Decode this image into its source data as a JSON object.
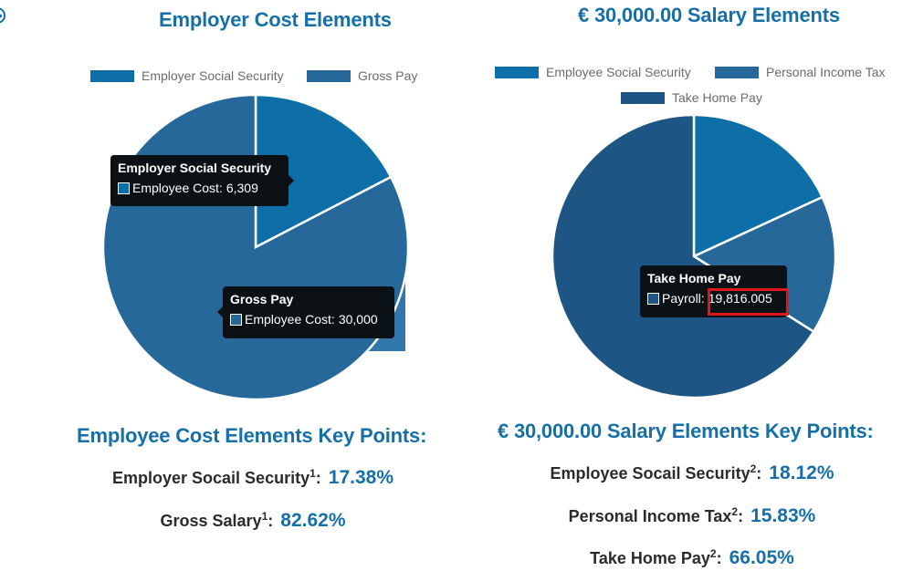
{
  "colors": {
    "accent": "#1670a8",
    "slice_light": "#0e6fa8",
    "slice_mid": "#26689a",
    "slice_dark": "#1d5584",
    "tooltip_bg": "#0c1116",
    "highlight": "#e0161b"
  },
  "left": {
    "title": "Employer Cost Elements",
    "legend": [
      "Employer Social Security",
      "Gross Pay"
    ],
    "tooltips": [
      {
        "title": "Employer Social Security",
        "label": "Employee Cost:",
        "value": "6,309"
      },
      {
        "title": "Gross Pay",
        "label": "Employee Cost:",
        "value": "30,000"
      }
    ],
    "key_points": {
      "title": "Employee Cost Elements Key Points:",
      "rows": [
        {
          "label": "Employer Socail Security",
          "sup": "1",
          "value": "17.38%"
        },
        {
          "label": "Gross Salary",
          "sup": "1",
          "value": "82.62%"
        }
      ]
    }
  },
  "right": {
    "title": "€ 30,000.00 Salary Elements",
    "legend": [
      "Employee Social Security",
      "Personal Income Tax",
      "Take Home Pay"
    ],
    "tooltip": {
      "title": "Take Home Pay",
      "label": "Payroll:",
      "value": "19,816.005"
    },
    "key_points": {
      "title": "€ 30,000.00 Salary Elements Key Points:",
      "rows": [
        {
          "label": "Employee Socail Security",
          "sup": "2",
          "value": "18.12%"
        },
        {
          "label": "Personal Income Tax",
          "sup": "2",
          "value": "15.83%"
        },
        {
          "label": "Take Home Pay",
          "sup": "2",
          "value": "66.05%"
        }
      ]
    }
  },
  "chart_data": [
    {
      "type": "pie",
      "title": "Employer Cost Elements",
      "categories": [
        "Employer Social Security",
        "Gross Pay"
      ],
      "values": [
        6309,
        30000
      ],
      "percentages": [
        17.38,
        82.62
      ],
      "colors": [
        "#0e6fa8",
        "#26689a"
      ],
      "legend_position": "top"
    },
    {
      "type": "pie",
      "title": "€ 30,000.00 Salary Elements",
      "categories": [
        "Employee Social Security",
        "Personal Income Tax",
        "Take Home Pay"
      ],
      "values": [
        5436,
        4748,
        19816.005
      ],
      "percentages": [
        18.12,
        15.83,
        66.05
      ],
      "colors": [
        "#0e6fa8",
        "#26689a",
        "#1d5584"
      ],
      "legend_position": "top"
    }
  ]
}
